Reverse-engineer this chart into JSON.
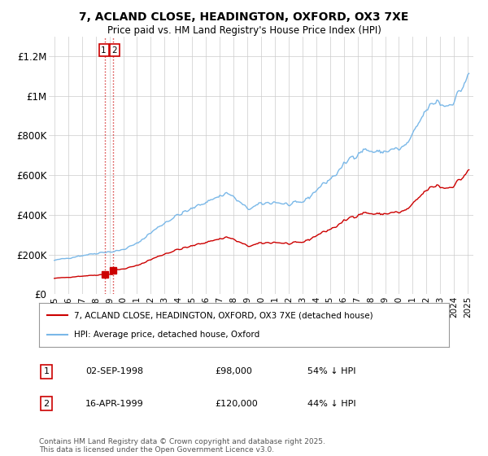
{
  "title": "7, ACLAND CLOSE, HEADINGTON, OXFORD, OX3 7XE",
  "subtitle": "Price paid vs. HM Land Registry's House Price Index (HPI)",
  "legend_line1": "7, ACLAND CLOSE, HEADINGTON, OXFORD, OX3 7XE (detached house)",
  "legend_line2": "HPI: Average price, detached house, Oxford",
  "transaction1_label": "1",
  "transaction1_date": "02-SEP-1998",
  "transaction1_price": "£98,000",
  "transaction1_hpi": "54% ↓ HPI",
  "transaction2_label": "2",
  "transaction2_date": "16-APR-1999",
  "transaction2_price": "£120,000",
  "transaction2_hpi": "44% ↓ HPI",
  "footer": "Contains HM Land Registry data © Crown copyright and database right 2025.\nThis data is licensed under the Open Government Licence v3.0.",
  "hpi_color": "#7ab8e8",
  "price_color": "#cc0000",
  "vline_color": "#cc0000",
  "background_color": "#ffffff",
  "transaction1_x": 1998.67,
  "transaction2_x": 1999.29,
  "transaction1_y": 98000,
  "transaction2_y": 120000,
  "ylim": [
    0,
    1300000
  ],
  "yticks": [
    0,
    200000,
    400000,
    600000,
    800000,
    1000000,
    1200000
  ],
  "ytick_labels": [
    "£0",
    "£200K",
    "£400K",
    "£600K",
    "£800K",
    "£1M",
    "£1.2M"
  ],
  "xmin": 1994.6,
  "xmax": 2025.4
}
